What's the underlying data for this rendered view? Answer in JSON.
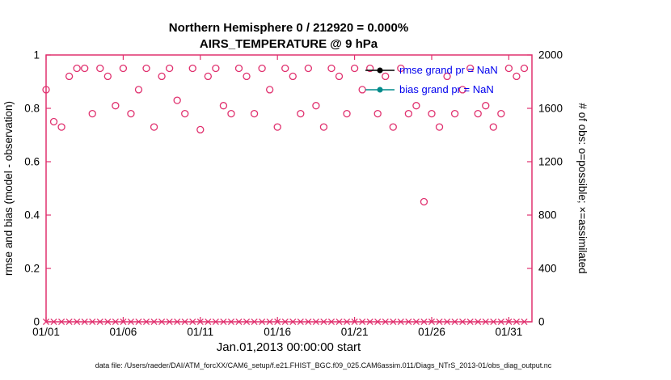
{
  "page": {
    "footer": "data file: /Users/raeder/DAI/ATM_forcXX/CAM6_setup/f.e21.FHIST_BGC.f09_025.CAM6assim.011/Diags_NTrS_2013-01/obs_diag_output.nc"
  },
  "colors": {
    "accent": "#e0306e",
    "rmse": "#000000",
    "bias": "#008b8b",
    "legend_text": "#0000ee",
    "axis_text": "#000000"
  },
  "legend": {
    "items": [
      {
        "label": "rmse grand pr = NaN",
        "color": "#000000"
      },
      {
        "label": "bias grand pr = NaN",
        "color": "#008b8b"
      }
    ]
  },
  "chart_data": {
    "type": "scatter",
    "title": "Northern Hemisphere 0 / 212920 = 0.000%",
    "subtitle": "AIRS_TEMPERATURE @ 9 hPa",
    "xlabel": "Jan.01,2013 00:00:00 start",
    "ylabel_left": "rmse and bias (model - observation)",
    "ylabel_right": "# of obs: o=possible; ×=assimilated",
    "ylim_left": [
      0,
      1
    ],
    "ylim_right": [
      0,
      2000
    ],
    "xlim_days": [
      1,
      32.5
    ],
    "grid": false,
    "legend_position": "top-center-inside",
    "x_tick_labels": [
      "01/01",
      "01/06",
      "01/11",
      "01/16",
      "01/21",
      "01/26",
      "01/31"
    ],
    "x_tick_days": [
      1,
      6,
      11,
      16,
      21,
      26,
      31
    ],
    "left_tick_labels": [
      "0",
      "0.2",
      "0.4",
      "0.6",
      "0.8",
      "1"
    ],
    "left_tick_values": [
      0,
      0.2,
      0.4,
      0.6,
      0.8,
      1
    ],
    "right_tick_labels": [
      "0",
      "400",
      "800",
      "1200",
      "1600",
      "2000"
    ],
    "right_tick_values": [
      0,
      400,
      800,
      1200,
      1600,
      2000
    ],
    "series": [
      {
        "name": "possible (o)",
        "axis": "right",
        "marker": "o",
        "x": [
          1,
          1.5,
          2,
          2.5,
          3,
          3.5,
          4,
          4.5,
          5,
          5.5,
          6,
          6.5,
          7,
          7.5,
          8,
          8.5,
          9,
          9.5,
          10,
          10.5,
          11,
          11.5,
          12,
          12.5,
          13,
          13.5,
          14,
          14.5,
          15,
          15.5,
          16,
          16.5,
          17,
          17.5,
          18,
          18.5,
          19,
          19.5,
          20,
          20.5,
          21,
          21.5,
          22,
          22.5,
          23,
          23.5,
          24,
          24.5,
          25,
          25.5,
          26,
          26.5,
          27,
          27.5,
          28,
          28.5,
          29,
          29.5,
          30,
          30.5,
          31,
          31.5,
          32
        ],
        "values": [
          1740,
          1500,
          1460,
          1840,
          1900,
          1900,
          1560,
          1900,
          1840,
          1620,
          1900,
          1560,
          1740,
          1900,
          1460,
          1840,
          1900,
          1660,
          1560,
          1900,
          1440,
          1840,
          1900,
          1620,
          1560,
          1900,
          1840,
          1560,
          1900,
          1740,
          1460,
          1900,
          1840,
          1560,
          1900,
          1620,
          1460,
          1900,
          1840,
          1560,
          1900,
          1740,
          1900,
          1560,
          1840,
          1460,
          1900,
          1560,
          1620,
          900,
          1560,
          1460,
          1840,
          1560,
          1740,
          1900,
          1560,
          1620,
          1460,
          1560,
          1900,
          1840,
          1900
        ]
      },
      {
        "name": "assimilated (×)",
        "axis": "right",
        "marker": "x",
        "x": [
          1,
          1.5,
          2,
          2.5,
          3,
          3.5,
          4,
          4.5,
          5,
          5.5,
          6,
          6.5,
          7,
          7.5,
          8,
          8.5,
          9,
          9.5,
          10,
          10.5,
          11,
          11.5,
          12,
          12.5,
          13,
          13.5,
          14,
          14.5,
          15,
          15.5,
          16,
          16.5,
          17,
          17.5,
          18,
          18.5,
          19,
          19.5,
          20,
          20.5,
          21,
          21.5,
          22,
          22.5,
          23,
          23.5,
          24,
          24.5,
          25,
          25.5,
          26,
          26.5,
          27,
          27.5,
          28,
          28.5,
          29,
          29.5,
          30,
          30.5,
          31,
          31.5,
          32
        ],
        "values": [
          0,
          0,
          0,
          0,
          0,
          0,
          0,
          0,
          0,
          0,
          0,
          0,
          0,
          0,
          0,
          0,
          0,
          0,
          0,
          0,
          0,
          0,
          0,
          0,
          0,
          0,
          0,
          0,
          0,
          0,
          0,
          0,
          0,
          0,
          0,
          0,
          0,
          0,
          0,
          0,
          0,
          0,
          0,
          0,
          0,
          0,
          0,
          0,
          0,
          0,
          0,
          0,
          0,
          0,
          0,
          0,
          0,
          0,
          0,
          0,
          0,
          0,
          0
        ]
      }
    ]
  }
}
